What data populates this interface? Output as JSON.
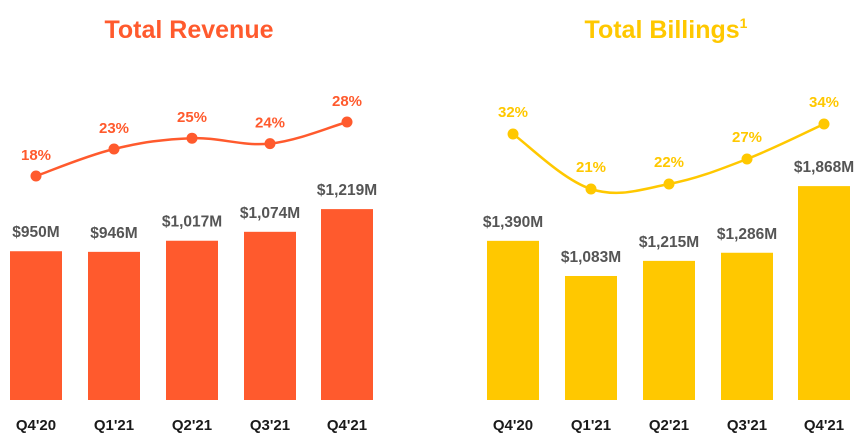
{
  "chart_data": [
    {
      "type": "bar",
      "title": "Total Revenue",
      "title_superscript": "",
      "color": "#FF5A2D",
      "categories": [
        "Q4'20",
        "Q1'21",
        "Q2'21",
        "Q3'21",
        "Q4'21"
      ],
      "values": [
        950,
        946,
        1017,
        1074,
        1219
      ],
      "value_labels": [
        "$950M",
        "$946M",
        "$1,017M",
        "$1,074M",
        "$1,219M"
      ],
      "unit": "$M",
      "growth_line": {
        "type": "line",
        "values": [
          18,
          23,
          25,
          24,
          28
        ],
        "labels": [
          "18%",
          "23%",
          "25%",
          "24%",
          "28%"
        ]
      },
      "grid": false,
      "legend": "none"
    },
    {
      "type": "bar",
      "title": "Total Billings",
      "title_superscript": "1",
      "color": "#FFC800",
      "categories": [
        "Q4'20",
        "Q1'21",
        "Q2'21",
        "Q3'21",
        "Q4'21"
      ],
      "values": [
        1390,
        1083,
        1215,
        1286,
        1868
      ],
      "value_labels": [
        "$1,390M",
        "$1,083M",
        "$1,215M",
        "$1,286M",
        "$1,868M"
      ],
      "unit": "$M",
      "growth_line": {
        "type": "line",
        "values": [
          32,
          21,
          22,
          27,
          34
        ],
        "labels": [
          "32%",
          "21%",
          "22%",
          "27%",
          "34%"
        ]
      },
      "grid": false,
      "legend": "none"
    }
  ]
}
